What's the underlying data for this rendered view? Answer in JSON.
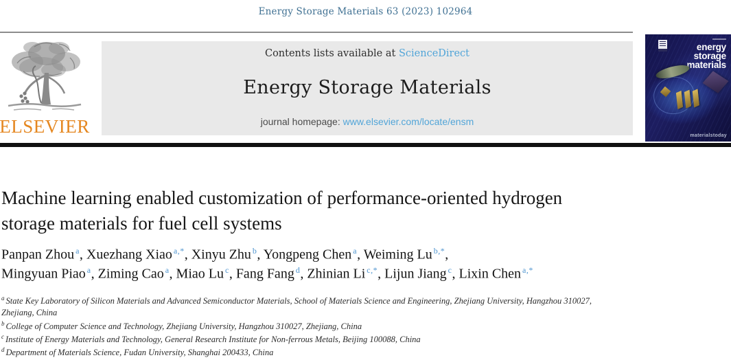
{
  "page": {
    "citation": "Energy Storage Materials 63 (2023) 102964"
  },
  "header": {
    "contents_line": {
      "prefix": "Contents lists available at ",
      "link": "ScienceDirect"
    },
    "journal_title": "Energy Storage Materials",
    "homepage_line": {
      "prefix": "journal homepage: ",
      "link": "www.elsevier.com/locate/ensm"
    },
    "publisher_logo_text": "ELSEVIER",
    "cover": {
      "journal_name_lines": [
        "energy",
        "storage",
        "materials"
      ],
      "brand": "materialstoday"
    }
  },
  "article": {
    "title_lines": [
      "Machine learning enabled customization of performance-oriented hydrogen",
      "storage materials for fuel cell systems"
    ],
    "author_lines": [
      [
        {
          "name": "Panpan Zhou",
          "sup": "a",
          "sep": ", "
        },
        {
          "name": "Xuezhang Xiao",
          "sup": "a,*",
          "sep": ", "
        },
        {
          "name": "Xinyu Zhu",
          "sup": "b",
          "sep": ", "
        },
        {
          "name": "Yongpeng Chen",
          "sup": "a",
          "sep": ", "
        },
        {
          "name": "Weiming Lu",
          "sup": "b,*",
          "sep": ","
        }
      ],
      [
        {
          "name": "Mingyuan Piao",
          "sup": "a",
          "sep": ", "
        },
        {
          "name": "Ziming Cao",
          "sup": "a",
          "sep": ", "
        },
        {
          "name": "Miao Lu",
          "sup": "c",
          "sep": ", "
        },
        {
          "name": "Fang Fang",
          "sup": "d",
          "sep": ", "
        },
        {
          "name": "Zhinian Li",
          "sup": "c,*",
          "sep": ", "
        },
        {
          "name": "Lijun Jiang",
          "sup": "c",
          "sep": ", "
        },
        {
          "name": "Lixin Chen",
          "sup": "a,*",
          "sep": ""
        }
      ]
    ],
    "affiliations": [
      {
        "sup": "a",
        "lines": [
          "State Key Laboratory of Silicon Materials and Advanced Semiconductor Materials, School of Materials Science and Engineering, Zhejiang University, Hangzhou 310027,",
          "Zhejiang, China"
        ]
      },
      {
        "sup": "b",
        "lines": [
          "College of Computer Science and Technology, Zhejiang University, Hangzhou 310027, Zhejiang, China"
        ]
      },
      {
        "sup": "c",
        "lines": [
          "Institute of Energy Materials and Technology, General Research Institute for Non-ferrous Metals, Beijing 100088, China"
        ]
      },
      {
        "sup": "d",
        "lines": [
          "Department of Materials Science, Fudan University, Shanghai 200433, China"
        ]
      }
    ]
  },
  "colors": {
    "citation_blue": "#3f7092",
    "link_blue": "#52a5d8",
    "superscript_blue": "#4e94cf",
    "elsevier_orange": "#e58720",
    "header_box_gray": "#e9e9e9",
    "cover_navy": "#16164d"
  }
}
